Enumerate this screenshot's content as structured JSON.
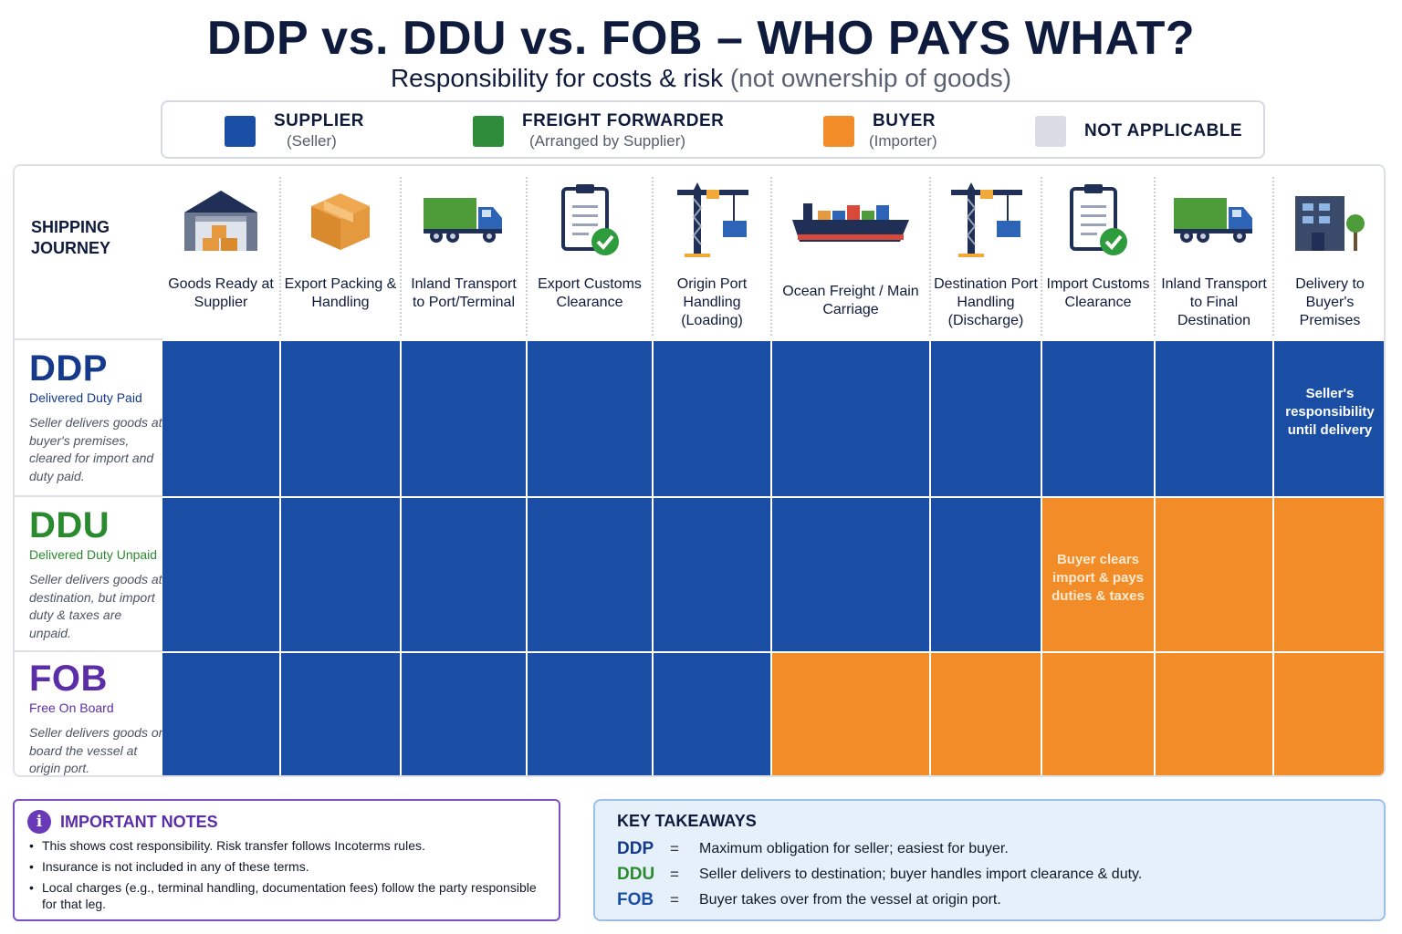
{
  "header": {
    "title": "DDP vs. DDU vs. FOB – WHO PAYS WHAT?",
    "subtitle_main": "Responsibility for costs & risk",
    "subtitle_muted": "(not ownership of goods)"
  },
  "colors": {
    "supplier": "#1a4ea5",
    "freight_forwarder": "#2e8b3a",
    "buyer": "#f28c28",
    "not_applicable": "#d9dce2",
    "ddp": "#153a8c",
    "ddu": "#2a8a2e",
    "fob": "#5b2ea8"
  },
  "legend": [
    {
      "label": "SUPPLIER",
      "sub": "(Seller)",
      "color": "#1a4ea5"
    },
    {
      "label": "FREIGHT FORWARDER",
      "sub": "(Arranged by Supplier)",
      "color": "#2e8b3a"
    },
    {
      "label": "BUYER",
      "sub": "(Importer)",
      "color": "#f28c28"
    },
    {
      "label": "NOT APPLICABLE",
      "sub": "",
      "color": "#d9dce2"
    }
  ],
  "journey_label": "SHIPPING JOURNEY",
  "stages": [
    {
      "label": "Goods Ready at Supplier",
      "icon": "warehouse-icon"
    },
    {
      "label": "Export Packing & Handling",
      "icon": "box-icon"
    },
    {
      "label": "Inland Transport to Port/Terminal",
      "icon": "truck-icon"
    },
    {
      "label": "Export Customs Clearance",
      "icon": "clipboard-check-icon"
    },
    {
      "label": "Origin Port Handling (Loading)",
      "icon": "crane-icon"
    },
    {
      "label": "Ocean Freight / Main Carriage",
      "icon": "container-ship-icon"
    },
    {
      "label": "Destination Port Handling (Discharge)",
      "icon": "crane-icon"
    },
    {
      "label": "Import Customs Clearance",
      "icon": "clipboard-check-icon"
    },
    {
      "label": "Inland Transport to Final Destination",
      "icon": "truck-icon"
    },
    {
      "label": "Delivery to Buyer's Premises",
      "icon": "building-icon"
    }
  ],
  "terms": [
    {
      "code": "DDP",
      "name": "Delivered Duty Paid",
      "description": "Seller delivers goods at buyer's premises, cleared for import and duty paid.",
      "responsibility": [
        "supplier",
        "supplier",
        "supplier",
        "supplier",
        "supplier",
        "supplier",
        "supplier",
        "supplier",
        "supplier",
        "supplier"
      ],
      "note": {
        "stage": 9,
        "text": "Seller's responsibility until delivery"
      }
    },
    {
      "code": "DDU",
      "name": "Delivered Duty Unpaid",
      "description": "Seller delivers goods at destination, but import duty & taxes are unpaid.",
      "responsibility": [
        "supplier",
        "supplier",
        "supplier",
        "supplier",
        "supplier",
        "supplier",
        "supplier",
        "buyer",
        "buyer",
        "buyer"
      ],
      "note": {
        "stage": 7,
        "text": "Buyer clears import & pays duties & taxes"
      }
    },
    {
      "code": "FOB",
      "name": "Free On Board",
      "description": "Seller delivers goods on board the vessel at origin port.",
      "responsibility": [
        "supplier",
        "supplier",
        "supplier",
        "supplier",
        "supplier",
        "buyer",
        "buyer",
        "buyer",
        "buyer",
        "buyer"
      ],
      "note": null
    }
  ],
  "notes": {
    "title": "IMPORTANT NOTES",
    "items": [
      "This shows cost responsibility. Risk transfer follows Incoterms rules.",
      "Insurance is not included in any of these terms.",
      "Local charges (e.g., terminal handling, documentation fees) follow the party responsible for that leg."
    ]
  },
  "takeaways": {
    "title": "KEY TAKEAWAYS",
    "rows": [
      {
        "code": "DDP",
        "eq": "=",
        "text": "Maximum obligation for seller; easiest for buyer."
      },
      {
        "code": "DDU",
        "eq": "=",
        "text": "Seller delivers to destination; buyer handles import clearance & duty."
      },
      {
        "code": "FOB",
        "eq": "=",
        "text": "Buyer takes over from the vessel at origin port."
      }
    ]
  }
}
